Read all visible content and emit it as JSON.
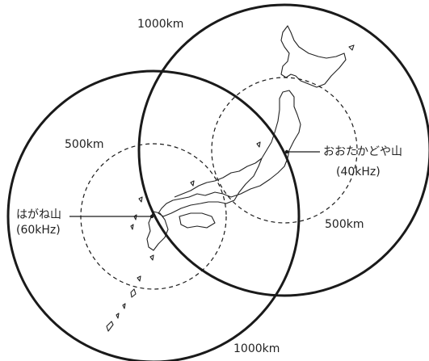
{
  "map": {
    "colors": {
      "land_outline": "#222222",
      "coverage_ring": "#1a1a1a",
      "background": "#ffffff"
    },
    "stations": [
      {
        "name": "おおたかどや山",
        "frequency": "(40kHz)",
        "rings": [
          {
            "radius_label": "1000km",
            "style": "solid"
          },
          {
            "radius_label": "500km",
            "style": "dashed"
          }
        ]
      },
      {
        "name": "はがね山",
        "frequency": "(60kHz)",
        "rings": [
          {
            "radius_label": "1000km",
            "style": "solid"
          },
          {
            "radius_label": "500km",
            "style": "dashed"
          }
        ]
      }
    ]
  }
}
